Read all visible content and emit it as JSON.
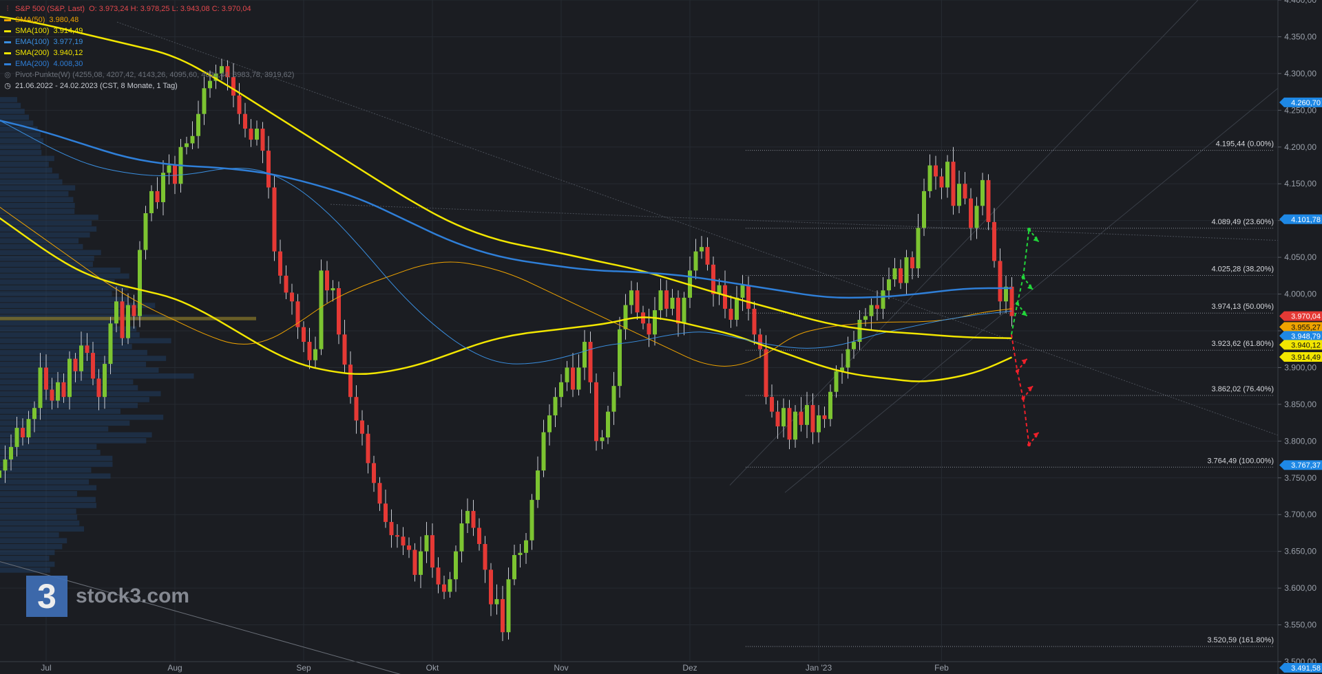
{
  "legend": {
    "title": "S&P 500 (S&P, Last)",
    "ohlc": "O: 3.973,24  H: 3.978,25  L: 3.943,08  C: 3.970,04",
    "indicators": [
      {
        "name": "SMA(50)",
        "value": "3.980,48",
        "color": "#f0a400"
      },
      {
        "name": "SMA(100)",
        "value": "3.914,49",
        "color": "#f2e600"
      },
      {
        "name": "EMA(100)",
        "value": "3.977,19",
        "color": "#3a8fe0"
      },
      {
        "name": "SMA(200)",
        "value": "3.940,12",
        "color": "#f2e600"
      },
      {
        "name": "EMA(200)",
        "value": "4.008,30",
        "color": "#2f7fd8"
      }
    ],
    "pivot": "Pivot-Punkte(W)  (4255,08,  4207,42,  4143,26,  4095,60,  4031,44,  3983,78,  3919,62)",
    "range": "21.06.2022 - 24.02.2023   (CST, 8 Monate, 1 Tag)"
  },
  "logo": {
    "mark": "3",
    "text": "stock3.com"
  },
  "chart_data": {
    "type": "candlestick",
    "title": "S&P 500 (S&P, Last)",
    "ylim": [
      3500,
      4400
    ],
    "y_ticks": [
      "3.500,00",
      "3.550,00",
      "3.600,00",
      "3.650,00",
      "3.700,00",
      "3.750,00",
      "3.800,00",
      "3.850,00",
      "3.900,00",
      "3.950,00",
      "4.000,00",
      "4.050,00",
      "4.100,00",
      "4.150,00",
      "4.200,00",
      "4.250,00",
      "4.300,00",
      "4.350,00",
      "4.400,00"
    ],
    "x_ticks": [
      {
        "label": "Jul",
        "day": 8
      },
      {
        "label": "Aug",
        "day": 30
      },
      {
        "label": "Sep",
        "day": 52
      },
      {
        "label": "Okt",
        "day": 74
      },
      {
        "label": "Nov",
        "day": 96
      },
      {
        "label": "Dez",
        "day": 118
      },
      {
        "label": "Jan '23",
        "day": 140
      },
      {
        "label": "Feb",
        "day": 161
      }
    ],
    "closes": [
      3760,
      3775,
      3792,
      3818,
      3805,
      3830,
      3845,
      3900,
      3870,
      3855,
      3880,
      3860,
      3912,
      3895,
      3930,
      3920,
      3885,
      3860,
      3905,
      3960,
      3990,
      3940,
      3985,
      3970,
      4060,
      4110,
      4140,
      4125,
      4165,
      4175,
      4150,
      4200,
      4205,
      4215,
      4245,
      4280,
      4290,
      4300,
      4310,
      4295,
      4270,
      4245,
      4225,
      4210,
      4225,
      4195,
      4145,
      4058,
      4025,
      4002,
      3990,
      3955,
      3935,
      3910,
      3925,
      4032,
      4005,
      4008,
      3945,
      3904,
      3860,
      3828,
      3810,
      3770,
      3743,
      3715,
      3690,
      3672,
      3670,
      3658,
      3652,
      3618,
      3650,
      3672,
      3628,
      3605,
      3595,
      3612,
      3650,
      3688,
      3705,
      3682,
      3660,
      3625,
      3578,
      3585,
      3540,
      3612,
      3645,
      3648,
      3665,
      3720,
      3760,
      3812,
      3835,
      3860,
      3880,
      3900,
      3870,
      3900,
      3935,
      3880,
      3800,
      3805,
      3840,
      3875,
      3952,
      3985,
      4005,
      3975,
      3960,
      3945,
      3978,
      4005,
      3980,
      3995,
      3960,
      3995,
      4032,
      4058,
      4064,
      4040,
      4000,
      4012,
      3980,
      3965,
      3995,
      4012,
      3980,
      3945,
      3925,
      3860,
      3840,
      3820,
      3845,
      3802,
      3840,
      3822,
      3849,
      3812,
      3835,
      3830,
      3867,
      3895,
      3900,
      3925,
      3935,
      3965,
      3970,
      3985,
      3980,
      4005,
      4020,
      4035,
      4015,
      4050,
      4035,
      4090,
      4140,
      4175,
      4160,
      4145,
      4180,
      4120,
      4150,
      4130,
      4090,
      4120,
      4155,
      4098,
      4045,
      3990,
      4010,
      3970
    ],
    "series": [
      {
        "name": "SMA(50)",
        "values": [
          4130,
          4100,
          4070,
          4040,
          4010,
          3985,
          3965,
          3945,
          3930,
          3935,
          3960,
          3990,
          4010,
          4025,
          4040,
          4045,
          4038,
          4025,
          4005,
          3985,
          3965,
          3945,
          3925,
          3905,
          3900,
          3915,
          3945,
          3955,
          3960,
          3962,
          3962,
          3965,
          3975,
          3980
        ]
      },
      {
        "name": "SMA(100)",
        "values": [
          4115,
          4085,
          4055,
          4030,
          4015,
          4005,
          3995,
          3975,
          3950,
          3925,
          3905,
          3895,
          3890,
          3895,
          3905,
          3920,
          3935,
          3945,
          3950,
          3955,
          3960,
          3970,
          3965,
          3955,
          3945,
          3930,
          3915,
          3900,
          3890,
          3885,
          3880,
          3885,
          3895,
          3914
        ]
      },
      {
        "name": "EMA(100)",
        "values": [
          4245,
          4220,
          4195,
          4175,
          4165,
          4160,
          4163,
          4172,
          4170,
          4148,
          4110,
          4060,
          4005,
          3960,
          3925,
          3905,
          3905,
          3915,
          3930,
          3935,
          3945,
          3950,
          3940,
          3930,
          3925,
          3930,
          3945,
          3955,
          3965,
          3972,
          3977
        ]
      },
      {
        "name": "SMA(200)",
        "values": [
          4380,
          4370,
          4355,
          4340,
          4325,
          4290,
          4250,
          4210,
          4170,
          4130,
          4095,
          4072,
          4060,
          4046,
          4033,
          4014,
          3995,
          3978,
          3960,
          3950,
          3946,
          3941,
          3940
        ]
      },
      {
        "name": "EMA(200)",
        "values": [
          4240,
          4225,
          4205,
          4185,
          4175,
          4172,
          4165,
          4150,
          4130,
          4100,
          4070,
          4050,
          4040,
          4032,
          4030,
          4025,
          4015,
          4005,
          3995,
          3995,
          4000,
          4008,
          4008
        ]
      }
    ],
    "fib_levels": [
      {
        "price": 4195.44,
        "label": "4.195,44 (0.00%)"
      },
      {
        "price": 4089.49,
        "label": "4.089,49 (23.60%)"
      },
      {
        "price": 4025.28,
        "label": "4.025,28 (38.20%)"
      },
      {
        "price": 3974.13,
        "label": "3.974,13 (50.00%)"
      },
      {
        "price": 3923.62,
        "label": "3.923,62 (61.80%)"
      },
      {
        "price": 3862.02,
        "label": "3.862,02 (76.40%)"
      },
      {
        "price": 3764.49,
        "label": "3.764,49 (100.00%)"
      },
      {
        "price": 3520.59,
        "label": "3.520,59 (161.80%)"
      }
    ],
    "price_tags": [
      {
        "price": 4260.7,
        "label": "4.260,70",
        "color": "#1e88e5"
      },
      {
        "price": 4101.78,
        "label": "4.101,78",
        "color": "#1e88e5"
      },
      {
        "price": 3970.04,
        "label": "3.970,04",
        "color": "#e53935"
      },
      {
        "price": 3955.27,
        "label": "3.955,27",
        "color": "#f0a400"
      },
      {
        "price": 3948.79,
        "label": "3.948,79",
        "color": "#1e88e5"
      },
      {
        "price": 3940.12,
        "label": "3.940,12",
        "color": "#f2e600"
      },
      {
        "price": 3914.49,
        "label": "3.914,49",
        "color": "#f2e600"
      },
      {
        "price": 3767.37,
        "label": "3.767,37",
        "color": "#1e88e5"
      },
      {
        "price": 3491.58,
        "label": "3.491,58",
        "color": "#1e88e5"
      }
    ],
    "scenarios": {
      "bullish": [
        [
          172,
          3945
        ],
        [
          173,
          3987
        ],
        [
          174,
          4023
        ],
        [
          175,
          4088
        ]
      ],
      "bearish": [
        [
          172,
          3945
        ],
        [
          173,
          3895
        ],
        [
          174,
          3858
        ],
        [
          175,
          3795
        ]
      ]
    },
    "colors": {
      "up": "#7cc431",
      "down": "#e53935",
      "background": "#1b1d22",
      "grid": "#262a31"
    }
  }
}
